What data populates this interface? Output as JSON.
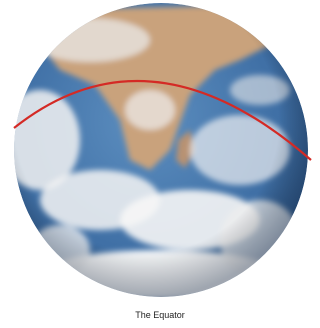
{
  "caption": "The Equator"
}
